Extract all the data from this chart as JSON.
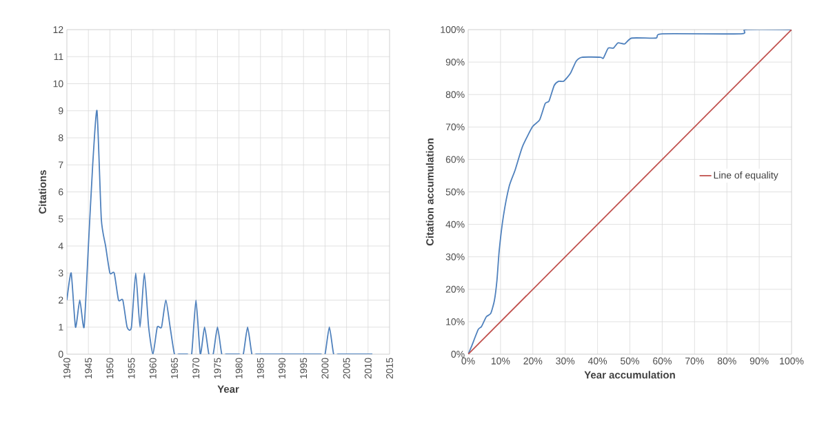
{
  "chart_data": [
    {
      "type": "line",
      "xlabel": "Year",
      "ylabel": "Citations",
      "color": "#4f81bd",
      "grid": true,
      "x": [
        1940,
        1941,
        1942,
        1943,
        1944,
        1945,
        1946,
        1947,
        1948,
        1949,
        1950,
        1951,
        1952,
        1953,
        1954,
        1955,
        1956,
        1957,
        1958,
        1959,
        1960,
        1961,
        1962,
        1963,
        1964,
        1965,
        1966,
        1967,
        1968,
        1969,
        1970,
        1971,
        1972,
        1973,
        1974,
        1975,
        1976,
        1977,
        1978,
        1979,
        1980,
        1981,
        1982,
        1983,
        1984,
        1985,
        1986,
        1987,
        1988,
        1989,
        1990,
        1991,
        1992,
        1993,
        1994,
        1995,
        1996,
        1997,
        1998,
        1999,
        2000,
        2001,
        2002,
        2003,
        2004,
        2005,
        2006,
        2007,
        2008,
        2009,
        2010,
        2011
      ],
      "values": [
        2,
        3,
        1,
        2,
        1,
        4,
        7,
        9,
        5,
        4,
        3,
        3,
        2,
        2,
        1,
        1,
        3,
        1,
        3,
        1,
        0,
        1,
        1,
        2,
        1,
        0,
        0,
        0,
        0,
        0,
        2,
        0,
        1,
        0,
        0,
        1,
        0,
        0,
        0,
        0,
        0,
        0,
        1,
        0,
        0,
        0,
        0,
        0,
        0,
        0,
        0,
        0,
        0,
        0,
        0,
        0,
        0,
        0,
        0,
        0,
        0,
        1,
        0,
        0,
        0,
        0,
        0,
        0,
        0,
        0,
        0,
        0
      ],
      "xlim": [
        1940,
        2015
      ],
      "xticks": [
        1940,
        1945,
        1950,
        1955,
        1960,
        1965,
        1970,
        1975,
        1980,
        1985,
        1990,
        1995,
        2000,
        2005,
        2010,
        2015
      ],
      "ylim": [
        0,
        12
      ],
      "yticks": [
        0,
        1,
        2,
        3,
        4,
        5,
        6,
        7,
        8,
        9,
        10,
        11,
        12
      ]
    },
    {
      "type": "line",
      "xlabel": "Year accumulation",
      "ylabel": "Citation accumulation",
      "grid": true,
      "legend": "right",
      "series": [
        {
          "color": "#4f81bd",
          "x": [
            0,
            1,
            3.1,
            4.1,
            5.6,
            7,
            8.1,
            8.9,
            9.6,
            10.9,
            12.7,
            14.5,
            16.8,
            19.9,
            22.1,
            23.8,
            25,
            26.6,
            28,
            29.5,
            31.6,
            33.4,
            35.2,
            40.9,
            41.8,
            43.3,
            44.9,
            46.3,
            48.4,
            50.6,
            58.1,
            60,
            84.4,
            85.8,
            100
          ],
          "values": [
            0,
            2.3,
            7.6,
            8.5,
            11.5,
            12.6,
            16.5,
            22.8,
            32,
            42.6,
            51.8,
            56.7,
            64,
            70.1,
            72.2,
            77.2,
            78,
            82.8,
            84.1,
            84.1,
            86.5,
            90.3,
            91.5,
            91.5,
            91.2,
            94.3,
            94.3,
            95.9,
            95.6,
            97.4,
            97.4,
            98.7,
            98.7,
            100,
            100
          ]
        },
        {
          "name": "Line of equality",
          "color": "#c0504d",
          "x": [
            0,
            100
          ],
          "values": [
            0,
            100
          ]
        }
      ],
      "xlim": [
        0,
        100
      ],
      "xticks": [
        {
          "value": 0,
          "label": "0%"
        },
        {
          "value": 10,
          "label": "10%"
        },
        {
          "value": 20,
          "label": "20%"
        },
        {
          "value": 30,
          "label": "30%"
        },
        {
          "value": 40,
          "label": "40%"
        },
        {
          "value": 50,
          "label": "50%"
        },
        {
          "value": 60,
          "label": "60%"
        },
        {
          "value": 70,
          "label": "70%"
        },
        {
          "value": 80,
          "label": "80%"
        },
        {
          "value": 90,
          "label": "90%"
        },
        {
          "value": 100,
          "label": "100%"
        }
      ],
      "ylim": [
        0,
        100
      ],
      "yticks": [
        {
          "value": 0,
          "label": "0%"
        },
        {
          "value": 10,
          "label": "10%"
        },
        {
          "value": 20,
          "label": "20%"
        },
        {
          "value": 30,
          "label": "30%"
        },
        {
          "value": 40,
          "label": "40%"
        },
        {
          "value": 50,
          "label": "50%"
        },
        {
          "value": 60,
          "label": "60%"
        },
        {
          "value": 70,
          "label": "70%"
        },
        {
          "value": 80,
          "label": "80%"
        },
        {
          "value": 90,
          "label": "90%"
        },
        {
          "value": 100,
          "label": "100%"
        }
      ]
    }
  ]
}
